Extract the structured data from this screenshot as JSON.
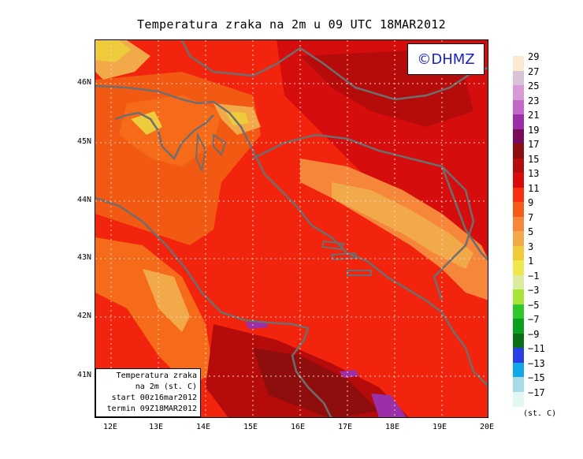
{
  "title": "Temperatura zraka na 2m u 09 UTC 18MAR2012",
  "copyright": "©DHMZ",
  "info_box": {
    "line1": "Temperatura zraka",
    "line2": "na 2m (st. C)",
    "line3": "start 00z16mar2012",
    "line4": "termin 09Z18MAR2012"
  },
  "lat_ticks": [
    "46N",
    "45N",
    "44N",
    "43N",
    "42N",
    "41N"
  ],
  "lon_ticks": [
    "12E",
    "13E",
    "14E",
    "15E",
    "16E",
    "17E",
    "18E",
    "19E",
    "20E"
  ],
  "legend": {
    "unit": "(st. C)",
    "labels": [
      "29",
      "27",
      "25",
      "23",
      "21",
      "19",
      "17",
      "15",
      "13",
      "11",
      "9",
      "7",
      "5",
      "3",
      "1",
      "−1",
      "−3",
      "−5",
      "−7",
      "−9",
      "−11",
      "−13",
      "−15",
      "−17"
    ],
    "colors": [
      "#fbe9d4",
      "#d8c2d8",
      "#d79ad6",
      "#c168c9",
      "#9a2fa8",
      "#7a0a5a",
      "#8e0d0d",
      "#b30d0d",
      "#d80c0c",
      "#f73011",
      "#f25c16",
      "#f5863a",
      "#f2a94a",
      "#eecb3b",
      "#f0e64e",
      "#dcec9f",
      "#a6e43a",
      "#2fc82b",
      "#0b9f1e",
      "#0b7013",
      "#2a3fe3",
      "#12a7e6",
      "#a7dce6",
      "#e2f7f2"
    ]
  },
  "colors": {
    "sea_base": "#f2240e",
    "coast_line": "#6e6e6e",
    "grid_line": "#f8d0c0"
  }
}
